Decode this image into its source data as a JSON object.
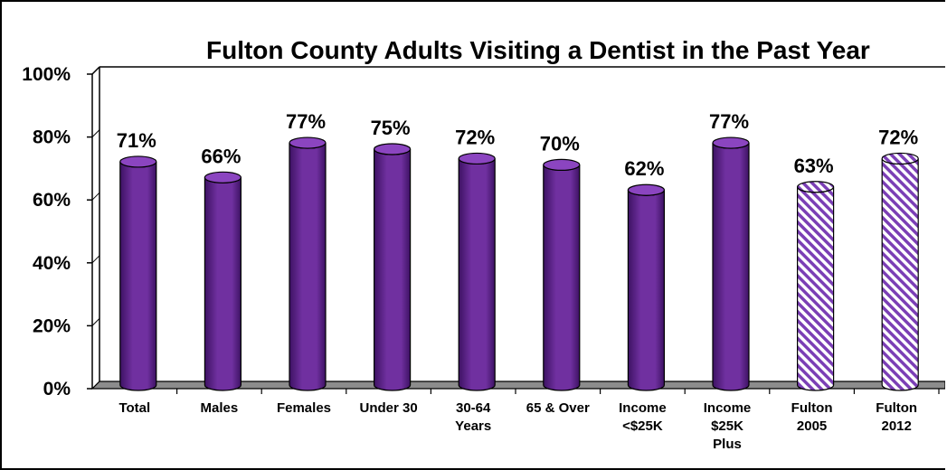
{
  "chart_data": {
    "type": "bar",
    "title": "Fulton County Adults Visiting a Dentist in the Past Year",
    "categories": [
      [
        "Total"
      ],
      [
        "Males"
      ],
      [
        "Females"
      ],
      [
        "Under 30"
      ],
      [
        "30-64",
        "Years"
      ],
      [
        "65 & Over"
      ],
      [
        "Income",
        "<$25K"
      ],
      [
        "Income",
        "$25K",
        "Plus"
      ],
      [
        "Fulton",
        "2005"
      ],
      [
        "Fulton",
        "2012"
      ]
    ],
    "values": [
      71,
      66,
      77,
      75,
      72,
      70,
      62,
      77,
      63,
      72
    ],
    "data_labels": [
      "71%",
      "66%",
      "77%",
      "75%",
      "72%",
      "70%",
      "62%",
      "77%",
      "63%",
      "72%"
    ],
    "bar_styles": [
      "solid",
      "solid",
      "solid",
      "solid",
      "solid",
      "solid",
      "solid",
      "solid",
      "hatched",
      "hatched"
    ],
    "y_ticks": [
      "0%",
      "20%",
      "40%",
      "60%",
      "80%",
      "100%"
    ],
    "ylim": [
      0,
      100
    ],
    "xlabel": "",
    "ylabel": "",
    "grid": false,
    "colors": {
      "bar": "#7030a0",
      "bar_dark": "#3d1263",
      "bar_top": "#8b45c0",
      "hatch_stripe": "#7b3fb5",
      "hatch_bg": "#ffffff",
      "floor": "#8c8c8c",
      "wall_edge": "#000000"
    }
  }
}
